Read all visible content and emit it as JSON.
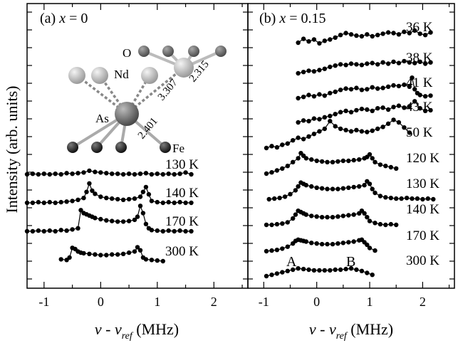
{
  "chart_data": {
    "type": "line",
    "y_axis_label": "Intensity (arb. units)",
    "x_axis_label_main": "ν - ν",
    "x_axis_label_sub": "ref",
    "x_axis_label_unit": " (MHz)",
    "x_ticks": [
      "-1",
      "0",
      "1",
      "2"
    ],
    "xlim": [
      -1.3,
      2.6
    ],
    "panels": [
      {
        "label_prefix": "(a) ",
        "label_var": "x",
        "label_value": " = 0",
        "inset": {
          "atom_o": "O",
          "atom_nd": "Nd",
          "atom_as": "As",
          "atom_fe": "Fe",
          "dist_nd": "3.307",
          "dist_o": "2.315",
          "dist_fe": "2.401"
        },
        "traces": [
          {
            "label": "130 K",
            "offset": 0,
            "x": [
              -1.3,
              -1.2,
              -1.1,
              -1.0,
              -0.9,
              -0.8,
              -0.7,
              -0.6,
              -0.5,
              -0.4,
              -0.3,
              -0.2,
              -0.1,
              0.0,
              0.1,
              0.2,
              0.3,
              0.4,
              0.5,
              0.6,
              0.7,
              0.8,
              0.9,
              1.0,
              1.1,
              1.2,
              1.3,
              1.4,
              1.5,
              1.6
            ],
            "y": [
              0,
              0.1,
              0,
              0.1,
              0,
              0.1,
              0,
              0.2,
              0.1,
              0.2,
              0.3,
              0.6,
              0.4,
              0.3,
              0.2,
              0.1,
              0.1,
              0,
              0.1,
              0,
              0.1,
              0.2,
              0,
              0.1,
              0,
              0.1,
              0,
              0.1,
              0.3,
              0
            ]
          },
          {
            "label": "140 K",
            "offset": 1,
            "x": [
              -1.3,
              -1.2,
              -1.1,
              -1.0,
              -0.9,
              -0.8,
              -0.7,
              -0.6,
              -0.5,
              -0.4,
              -0.3,
              -0.25,
              -0.2,
              -0.15,
              -0.1,
              0.0,
              0.1,
              0.2,
              0.3,
              0.4,
              0.5,
              0.6,
              0.7,
              0.75,
              0.8,
              0.85,
              0.9,
              1.0,
              1.1,
              1.2,
              1.3,
              1.4,
              1.5,
              1.6
            ],
            "y": [
              0,
              0,
              0.1,
              0,
              0.1,
              0,
              0.1,
              0.2,
              0.3,
              0.5,
              0.8,
              1.8,
              3.2,
              2.0,
              1.5,
              1.0,
              0.8,
              0.7,
              0.6,
              0.5,
              0.6,
              0.7,
              1.0,
              1.8,
              2.6,
              1.4,
              0.3,
              0.1,
              0,
              0.1,
              0,
              0.1,
              0,
              0
            ]
          },
          {
            "label": "170 K",
            "offset": 2,
            "x": [
              -1.3,
              -1.2,
              -1.1,
              -1.0,
              -0.9,
              -0.8,
              -0.7,
              -0.6,
              -0.5,
              -0.4,
              -0.35,
              -0.3,
              -0.25,
              -0.2,
              -0.15,
              -0.1,
              0.0,
              0.1,
              0.2,
              0.3,
              0.4,
              0.5,
              0.6,
              0.65,
              0.7,
              0.75,
              0.8,
              0.85,
              0.9,
              1.0,
              1.1,
              1.2,
              1.3,
              1.4,
              1.5,
              1.6
            ],
            "y": [
              0,
              0,
              0.1,
              0,
              0.1,
              0,
              0.2,
              0.1,
              0.3,
              0.5,
              3.5,
              3.0,
              2.8,
              2.6,
              2.4,
              2.2,
              2.0,
              1.8,
              1.7,
              1.6,
              1.6,
              1.7,
              1.9,
              2.4,
              4.2,
              3.0,
              1.2,
              0.5,
              0.2,
              0.1,
              0,
              0.1,
              0,
              0.1,
              0,
              0
            ]
          },
          {
            "label": "300 K",
            "offset": 3,
            "x": [
              -0.7,
              -0.6,
              -0.55,
              -0.5,
              -0.45,
              -0.4,
              -0.35,
              -0.3,
              -0.2,
              -0.1,
              0.0,
              0.1,
              0.2,
              0.3,
              0.4,
              0.5,
              0.6,
              0.65,
              0.7,
              0.75,
              0.8,
              0.9,
              1.0,
              1.1
            ],
            "y": [
              0.3,
              0.2,
              0.6,
              2.2,
              2.0,
              1.6,
              1.4,
              1.3,
              1.2,
              1.1,
              1.0,
              1.0,
              1.1,
              1.1,
              1.2,
              1.4,
              1.6,
              2.3,
              1.8,
              0.6,
              0.3,
              0.2,
              0.1,
              0
            ]
          }
        ]
      },
      {
        "label_prefix": "(b) ",
        "label_var": "x",
        "label_value": " = 0.15",
        "peak_label_a": "A",
        "peak_label_b": "B",
        "traces": [
          {
            "label": "36 K",
            "x": [
              -0.35,
              -0.25,
              -0.15,
              -0.05,
              0.05,
              0.15,
              0.25,
              0.35,
              0.45,
              0.55,
              0.65,
              0.75,
              0.85,
              0.95,
              1.05,
              1.15,
              1.25,
              1.35,
              1.45,
              1.55,
              1.65,
              1.75,
              1.85,
              1.95,
              2.05,
              2.15
            ],
            "y": [
              0,
              0.6,
              0.2,
              0.5,
              -0.1,
              0.3,
              0.5,
              0.8,
              1.2,
              1.5,
              1.3,
              1.1,
              1.0,
              1.3,
              1.0,
              1.2,
              1.4,
              1.6,
              1.5,
              1.3,
              1.7,
              1.5,
              1.9,
              1.4,
              1.2,
              1.6
            ]
          },
          {
            "label": "38 K",
            "x": [
              -0.35,
              -0.25,
              -0.15,
              -0.05,
              0.05,
              0.15,
              0.25,
              0.35,
              0.45,
              0.55,
              0.65,
              0.75,
              0.85,
              0.95,
              1.05,
              1.15,
              1.25,
              1.35,
              1.45,
              1.55,
              1.65,
              1.75,
              1.85,
              1.95,
              2.05,
              2.15
            ],
            "y": [
              0,
              0.2,
              0.4,
              0.3,
              0.5,
              0.7,
              1.0,
              1.2,
              1.4,
              1.3,
              1.5,
              1.4,
              1.3,
              1.5,
              1.6,
              1.4,
              1.7,
              1.5,
              1.8,
              1.6,
              1.9,
              1.7,
              1.6,
              1.8,
              1.5,
              1.7
            ]
          },
          {
            "label": "41 K",
            "x": [
              -0.35,
              -0.25,
              -0.15,
              -0.05,
              0.05,
              0.15,
              0.25,
              0.35,
              0.45,
              0.55,
              0.65,
              0.75,
              0.85,
              0.95,
              1.05,
              1.15,
              1.25,
              1.35,
              1.45,
              1.55,
              1.65,
              1.75,
              1.8,
              1.85,
              1.9,
              1.95,
              2.05,
              2.15
            ],
            "y": [
              0,
              0.2,
              0.5,
              0.3,
              0.6,
              0.4,
              0.8,
              1.0,
              1.3,
              1.5,
              1.4,
              1.6,
              1.3,
              1.4,
              1.7,
              1.5,
              1.6,
              1.8,
              2.0,
              1.9,
              2.1,
              1.8,
              3.2,
              1.4,
              0.8,
              0.5,
              0.3,
              0.4
            ]
          },
          {
            "label": "43 K",
            "x": [
              -0.35,
              -0.25,
              -0.15,
              -0.05,
              0.05,
              0.15,
              0.25,
              0.35,
              0.45,
              0.55,
              0.65,
              0.75,
              0.85,
              0.95,
              1.05,
              1.15,
              1.25,
              1.35,
              1.45,
              1.55,
              1.65,
              1.75,
              1.85,
              1.95,
              2.05,
              2.15
            ],
            "y": [
              0,
              0.3,
              0.2,
              0.6,
              0.5,
              0.8,
              1.0,
              1.3,
              1.6,
              1.8,
              1.6,
              1.9,
              2.1,
              2.0,
              1.8,
              2.2,
              2.3,
              2.0,
              2.4,
              2.6,
              2.3,
              2.5,
              3.3,
              2.2,
              1.8,
              1.9
            ]
          },
          {
            "label": "50 K",
            "x": [
              -0.95,
              -0.85,
              -0.75,
              -0.65,
              -0.55,
              -0.45,
              -0.35,
              -0.25,
              -0.15,
              -0.05,
              0.05,
              0.15,
              0.25,
              0.35,
              0.45,
              0.55,
              0.65,
              0.75,
              0.85,
              0.95,
              1.05,
              1.15,
              1.25,
              1.35,
              1.45,
              1.55,
              1.65,
              1.75
            ],
            "y": [
              0,
              0.3,
              0.1,
              0.5,
              0.7,
              1.2,
              1.6,
              1.4,
              1.8,
              2.2,
              2.6,
              3.0,
              4.2,
              3.4,
              3.0,
              2.8,
              2.6,
              2.8,
              2.6,
              2.5,
              2.7,
              3.0,
              3.3,
              3.8,
              4.4,
              4.0,
              3.2,
              2.4
            ]
          },
          {
            "label": "120 K",
            "x": [
              -0.95,
              -0.85,
              -0.75,
              -0.65,
              -0.55,
              -0.45,
              -0.35,
              -0.3,
              -0.25,
              -0.2,
              -0.1,
              0.0,
              0.1,
              0.2,
              0.3,
              0.4,
              0.5,
              0.6,
              0.7,
              0.8,
              0.9,
              0.95,
              1.0,
              1.05,
              1.1,
              1.2,
              1.3,
              1.4,
              1.5
            ],
            "y": [
              0,
              0.2,
              0.5,
              0.8,
              1.2,
              1.8,
              2.4,
              3.2,
              2.8,
              2.4,
              2.2,
              2.0,
              1.9,
              1.8,
              1.8,
              1.9,
              2.0,
              2.0,
              2.1,
              2.2,
              2.4,
              2.6,
              3.0,
              2.4,
              1.8,
              1.4,
              1.2,
              1.0,
              0.8
            ]
          },
          {
            "label": "130 K",
            "x": [
              -0.9,
              -0.8,
              -0.7,
              -0.6,
              -0.5,
              -0.4,
              -0.35,
              -0.3,
              -0.25,
              -0.2,
              -0.1,
              0.0,
              0.1,
              0.2,
              0.3,
              0.4,
              0.5,
              0.6,
              0.7,
              0.8,
              0.9,
              0.95,
              1.0,
              1.05,
              1.1,
              1.2,
              1.3,
              1.4,
              1.5,
              1.6,
              1.7,
              1.8,
              1.9,
              2.0,
              2.1,
              2.2
            ],
            "y": [
              0,
              0.1,
              0.2,
              0.4,
              0.8,
              1.4,
              2.0,
              2.6,
              2.4,
              2.2,
              2.0,
              1.8,
              1.7,
              1.6,
              1.6,
              1.6,
              1.7,
              1.8,
              1.9,
              2.0,
              2.2,
              2.8,
              2.4,
              1.6,
              1.0,
              0.5,
              0.3,
              0.2,
              0.1,
              0.1,
              0.2,
              0.1,
              0.1,
              0,
              0.1,
              0
            ]
          },
          {
            "label": "140 K",
            "x": [
              -0.95,
              -0.85,
              -0.75,
              -0.65,
              -0.55,
              -0.45,
              -0.4,
              -0.35,
              -0.3,
              -0.25,
              -0.2,
              -0.1,
              0.0,
              0.1,
              0.2,
              0.3,
              0.4,
              0.5,
              0.6,
              0.7,
              0.8,
              0.85,
              0.9,
              0.95,
              1.0,
              1.1,
              1.2,
              1.3,
              1.4,
              1.5
            ],
            "y": [
              0,
              0,
              0.1,
              0.2,
              0.4,
              1.0,
              1.6,
              2.2,
              2.0,
              1.8,
              1.6,
              1.4,
              1.3,
              1.2,
              1.2,
              1.2,
              1.3,
              1.4,
              1.5,
              1.6,
              1.8,
              2.2,
              1.8,
              1.2,
              0.6,
              0.3,
              0.1,
              0,
              0.1,
              0
            ]
          },
          {
            "label": "170 K",
            "x": [
              -0.95,
              -0.85,
              -0.75,
              -0.65,
              -0.55,
              -0.45,
              -0.4,
              -0.35,
              -0.3,
              -0.25,
              -0.2,
              -0.1,
              0.0,
              0.1,
              0.2,
              0.3,
              0.4,
              0.5,
              0.6,
              0.7,
              0.8,
              0.85,
              0.9,
              0.95,
              1.0,
              1.1
            ],
            "y": [
              0,
              0.1,
              0.2,
              0.4,
              0.7,
              1.2,
              1.6,
              1.8,
              1.7,
              1.6,
              1.5,
              1.3,
              1.2,
              1.1,
              1.1,
              1.1,
              1.2,
              1.3,
              1.4,
              1.5,
              1.7,
              1.8,
              1.4,
              1.0,
              0.5,
              0.1
            ]
          },
          {
            "label": "300 K",
            "x": [
              -0.95,
              -0.85,
              -0.75,
              -0.65,
              -0.55,
              -0.45,
              -0.35,
              -0.25,
              -0.15,
              -0.05,
              0.05,
              0.15,
              0.25,
              0.35,
              0.45,
              0.55,
              0.65,
              0.75,
              0.85,
              0.95,
              1.05
            ],
            "y": [
              0,
              0.2,
              0.4,
              0.6,
              0.8,
              1.0,
              1.2,
              1.1,
              1.0,
              0.9,
              0.9,
              0.9,
              0.9,
              1.0,
              1.0,
              1.1,
              1.2,
              1.0,
              0.8,
              0.5,
              0.2
            ]
          }
        ]
      }
    ]
  }
}
